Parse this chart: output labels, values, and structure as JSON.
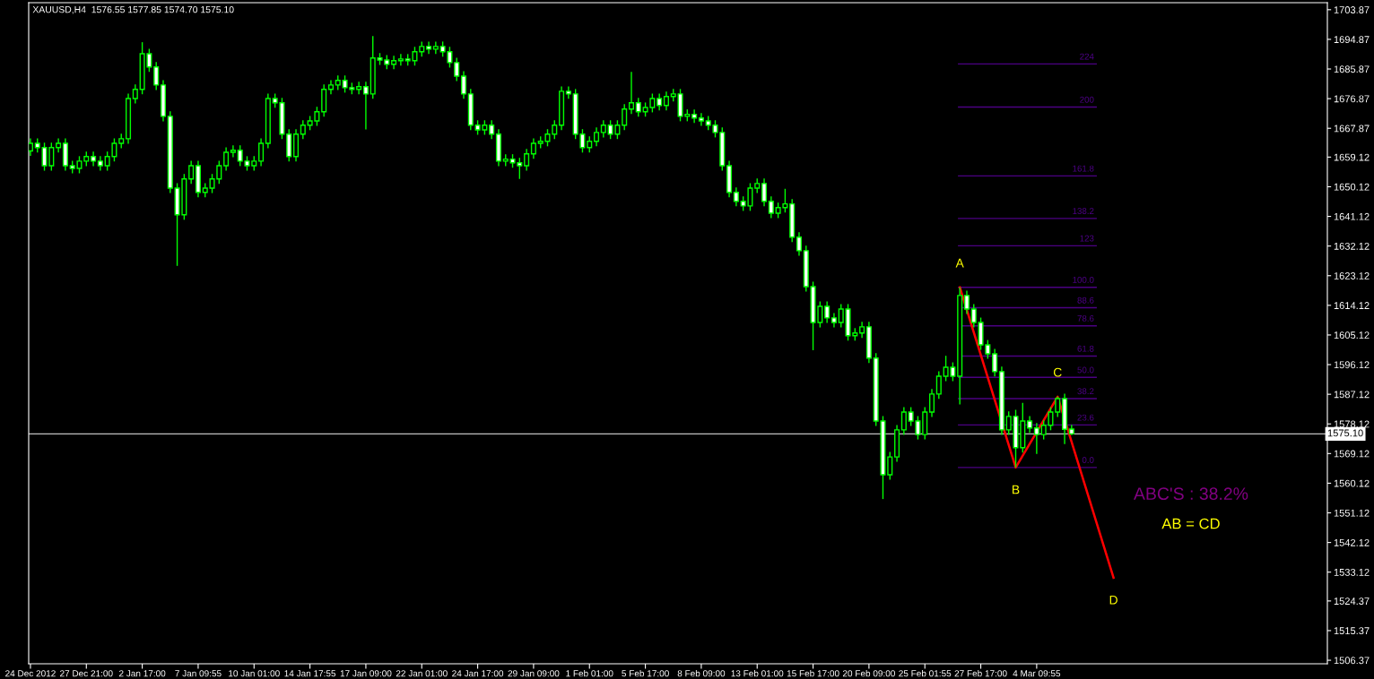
{
  "chart_data": {
    "type": "candlestick",
    "title": "XAUUSD,H4  1576.55 1577.85 1574.70 1575.10",
    "color": "#00ff00",
    "categories": [
      "24 Dec 2012",
      null,
      null,
      null,
      null,
      null,
      null,
      null,
      "27 Dec 21:00",
      null,
      null,
      null,
      null,
      null,
      null,
      null,
      "2 Jan 17:00",
      null,
      null,
      null,
      null,
      null,
      null,
      null,
      "7 Jan 09:55",
      null,
      null,
      null,
      null,
      null,
      null,
      null,
      "10 Jan 01:00",
      null,
      null,
      null,
      null,
      null,
      null,
      null,
      "14 Jan 17:55",
      null,
      null,
      null,
      null,
      null,
      null,
      null,
      "17 Jan 09:00",
      null,
      null,
      null,
      null,
      null,
      null,
      null,
      "22 Jan 01:00",
      null,
      null,
      null,
      null,
      null,
      null,
      null,
      "24 Jan 17:00",
      null,
      null,
      null,
      null,
      null,
      null,
      null,
      "29 Jan 09:00",
      null,
      null,
      null,
      null,
      null,
      null,
      null,
      "1 Feb 01:00",
      null,
      null,
      null,
      null,
      null,
      null,
      null,
      "5 Feb 17:00",
      null,
      null,
      null,
      null,
      null,
      null,
      null,
      "8 Feb 09:00",
      null,
      null,
      null,
      null,
      null,
      null,
      null,
      "13 Feb 01:00",
      null,
      null,
      null,
      null,
      null,
      null,
      null,
      "15 Feb 17:00",
      null,
      null,
      null,
      null,
      null,
      null,
      null,
      "20 Feb 09:00",
      null,
      null,
      null,
      null,
      null,
      null,
      null,
      "25 Feb 01:55",
      null,
      null,
      null,
      null,
      null,
      null,
      null,
      "27 Feb 17:00",
      null,
      null,
      null,
      null,
      null,
      null,
      null,
      "4 Mar 09:55",
      null,
      null,
      null,
      null,
      null,
      null,
      null,
      null,
      null,
      null,
      null,
      null,
      null,
      null,
      null,
      null,
      null,
      null,
      null,
      null,
      null,
      null,
      null,
      null,
      null,
      null,
      null,
      null,
      null,
      null,
      null,
      null,
      null,
      null,
      null,
      null,
      null,
      null,
      null,
      null,
      null
    ],
    "ohlc": [
      [
        1661.0,
        1664.8,
        1659.5,
        1663.3
      ],
      [
        1663.3,
        1664.8,
        1660.5,
        1662.0
      ],
      [
        1662.0,
        1663.5,
        1655.0,
        1656.5
      ],
      [
        1656.5,
        1663.5,
        1655.0,
        1662.0
      ],
      [
        1662.0,
        1664.8,
        1660.5,
        1663.3
      ],
      [
        1663.3,
        1664.8,
        1655.0,
        1656.5
      ],
      [
        1656.5,
        1658.0,
        1654.2,
        1655.7
      ],
      [
        1655.7,
        1659.4,
        1654.2,
        1657.9
      ],
      [
        1657.9,
        1660.8,
        1656.4,
        1659.3
      ],
      [
        1659.3,
        1660.8,
        1656.4,
        1657.9
      ],
      [
        1657.9,
        1659.4,
        1655.0,
        1656.5
      ],
      [
        1656.5,
        1660.8,
        1655.0,
        1659.3
      ],
      [
        1659.3,
        1664.8,
        1657.8,
        1663.3
      ],
      [
        1663.3,
        1666.2,
        1661.8,
        1664.7
      ],
      [
        1664.7,
        1678.4,
        1663.2,
        1676.9
      ],
      [
        1676.9,
        1681.2,
        1675.4,
        1679.7
      ],
      [
        1679.7,
        1694.0,
        1678.2,
        1690.5
      ],
      [
        1690.5,
        1692.0,
        1685.0,
        1686.5
      ],
      [
        1686.5,
        1688.0,
        1679.5,
        1681.0
      ],
      [
        1681.0,
        1682.5,
        1670.0,
        1671.5
      ],
      [
        1671.5,
        1673.0,
        1648.2,
        1649.7
      ],
      [
        1649.7,
        1651.2,
        1626.1,
        1641.6
      ],
      [
        1641.6,
        1654.0,
        1640.1,
        1652.5
      ],
      [
        1652.5,
        1658.0,
        1651.0,
        1656.5
      ],
      [
        1656.5,
        1658.0,
        1646.9,
        1648.4
      ],
      [
        1648.4,
        1651.2,
        1646.9,
        1649.7
      ],
      [
        1649.7,
        1654.0,
        1648.2,
        1652.5
      ],
      [
        1652.5,
        1658.0,
        1651.0,
        1656.5
      ],
      [
        1656.5,
        1662.1,
        1655.0,
        1660.6
      ],
      [
        1660.6,
        1662.7,
        1659.1,
        1661.2
      ],
      [
        1661.2,
        1662.7,
        1656.4,
        1657.9
      ],
      [
        1657.9,
        1659.4,
        1655.0,
        1656.5
      ],
      [
        1656.5,
        1659.4,
        1655.0,
        1657.9
      ],
      [
        1657.9,
        1664.8,
        1656.4,
        1663.3
      ],
      [
        1663.3,
        1678.4,
        1661.8,
        1676.9
      ],
      [
        1676.9,
        1678.4,
        1674.1,
        1675.6
      ],
      [
        1675.6,
        1677.1,
        1664.6,
        1666.1
      ],
      [
        1666.1,
        1667.6,
        1657.8,
        1659.3
      ],
      [
        1659.3,
        1667.6,
        1657.8,
        1666.1
      ],
      [
        1666.1,
        1670.3,
        1664.6,
        1668.8
      ],
      [
        1668.8,
        1671.6,
        1667.3,
        1670.1
      ],
      [
        1670.1,
        1674.4,
        1668.6,
        1672.9
      ],
      [
        1672.9,
        1681.2,
        1671.4,
        1679.7
      ],
      [
        1679.7,
        1682.5,
        1678.2,
        1681.0
      ],
      [
        1681.0,
        1683.9,
        1679.5,
        1682.4
      ],
      [
        1682.4,
        1683.9,
        1678.7,
        1680.2
      ],
      [
        1680.2,
        1681.7,
        1678.2,
        1679.7
      ],
      [
        1679.7,
        1682.0,
        1678.2,
        1680.5
      ],
      [
        1680.5,
        1682.0,
        1667.5,
        1678.3
      ],
      [
        1678.3,
        1695.9,
        1676.8,
        1689.2
      ],
      [
        1689.2,
        1690.7,
        1687.1,
        1688.6
      ],
      [
        1688.6,
        1690.1,
        1685.8,
        1687.3
      ],
      [
        1687.3,
        1689.9,
        1685.8,
        1688.4
      ],
      [
        1688.4,
        1690.4,
        1686.9,
        1688.9
      ],
      [
        1688.9,
        1690.4,
        1686.9,
        1688.4
      ],
      [
        1688.4,
        1692.6,
        1686.9,
        1691.1
      ],
      [
        1691.1,
        1694.2,
        1689.6,
        1692.7
      ],
      [
        1692.7,
        1694.2,
        1690.4,
        1691.9
      ],
      [
        1691.9,
        1694.2,
        1690.4,
        1692.7
      ],
      [
        1692.7,
        1694.2,
        1689.6,
        1691.1
      ],
      [
        1691.1,
        1692.6,
        1686.3,
        1687.8
      ],
      [
        1687.8,
        1689.3,
        1682.2,
        1683.7
      ],
      [
        1683.7,
        1685.2,
        1676.8,
        1678.3
      ],
      [
        1678.3,
        1679.8,
        1667.3,
        1668.8
      ],
      [
        1668.8,
        1670.3,
        1665.9,
        1667.4
      ],
      [
        1667.4,
        1670.3,
        1665.9,
        1668.8
      ],
      [
        1668.8,
        1670.3,
        1664.6,
        1666.1
      ],
      [
        1666.1,
        1667.6,
        1656.4,
        1657.9
      ],
      [
        1657.9,
        1660.0,
        1656.4,
        1658.5
      ],
      [
        1658.5,
        1660.0,
        1655.9,
        1657.4
      ],
      [
        1657.4,
        1658.9,
        1652.5,
        1656.5
      ],
      [
        1656.5,
        1661.6,
        1655.0,
        1660.1
      ],
      [
        1660.1,
        1664.8,
        1658.6,
        1663.3
      ],
      [
        1663.3,
        1665.4,
        1661.8,
        1663.9
      ],
      [
        1663.9,
        1667.6,
        1662.4,
        1666.1
      ],
      [
        1666.1,
        1670.3,
        1664.6,
        1668.8
      ],
      [
        1668.8,
        1680.6,
        1667.3,
        1679.1
      ],
      [
        1679.1,
        1680.6,
        1676.8,
        1678.3
      ],
      [
        1678.3,
        1679.8,
        1664.6,
        1666.1
      ],
      [
        1666.1,
        1667.6,
        1660.5,
        1662.0
      ],
      [
        1662.0,
        1665.4,
        1660.5,
        1663.9
      ],
      [
        1663.9,
        1668.1,
        1662.4,
        1666.6
      ],
      [
        1666.6,
        1670.3,
        1665.1,
        1668.8
      ],
      [
        1668.8,
        1670.3,
        1664.6,
        1666.1
      ],
      [
        1666.1,
        1670.3,
        1664.6,
        1668.8
      ],
      [
        1668.8,
        1675.2,
        1667.3,
        1673.7
      ],
      [
        1673.7,
        1685.0,
        1672.2,
        1675.6
      ],
      [
        1675.6,
        1677.1,
        1671.4,
        1672.9
      ],
      [
        1672.9,
        1675.7,
        1671.4,
        1674.2
      ],
      [
        1674.2,
        1678.4,
        1672.7,
        1676.9
      ],
      [
        1676.9,
        1678.4,
        1673.3,
        1674.8
      ],
      [
        1674.8,
        1679.0,
        1673.3,
        1677.5
      ],
      [
        1677.5,
        1679.8,
        1676.0,
        1678.3
      ],
      [
        1678.3,
        1679.8,
        1670.0,
        1671.5
      ],
      [
        1671.5,
        1673.6,
        1670.0,
        1672.1
      ],
      [
        1672.1,
        1673.6,
        1669.5,
        1671.0
      ],
      [
        1671.0,
        1672.5,
        1668.6,
        1670.1
      ],
      [
        1670.1,
        1671.6,
        1667.3,
        1668.8
      ],
      [
        1668.8,
        1670.3,
        1665.1,
        1666.6
      ],
      [
        1666.6,
        1668.1,
        1655.0,
        1656.5
      ],
      [
        1656.5,
        1658.0,
        1646.9,
        1648.4
      ],
      [
        1648.4,
        1649.9,
        1644.2,
        1645.7
      ],
      [
        1645.7,
        1647.2,
        1642.8,
        1644.3
      ],
      [
        1644.3,
        1651.2,
        1642.8,
        1649.7
      ],
      [
        1649.7,
        1652.6,
        1648.2,
        1651.1
      ],
      [
        1651.1,
        1652.6,
        1644.2,
        1645.7
      ],
      [
        1645.7,
        1647.2,
        1640.6,
        1642.1
      ],
      [
        1642.1,
        1645.3,
        1640.6,
        1643.8
      ],
      [
        1643.8,
        1649.5,
        1642.3,
        1644.9
      ],
      [
        1644.9,
        1646.4,
        1633.3,
        1634.8
      ],
      [
        1634.8,
        1636.3,
        1629.2,
        1630.7
      ],
      [
        1630.7,
        1632.2,
        1618.3,
        1619.8
      ],
      [
        1619.8,
        1621.3,
        1600.5,
        1608.9
      ],
      [
        1608.9,
        1615.3,
        1607.4,
        1613.8
      ],
      [
        1613.8,
        1615.3,
        1608.8,
        1610.3
      ],
      [
        1610.3,
        1611.8,
        1607.4,
        1608.9
      ],
      [
        1608.9,
        1614.5,
        1607.4,
        1613.0
      ],
      [
        1613.0,
        1614.5,
        1603.4,
        1604.9
      ],
      [
        1604.9,
        1607.2,
        1603.4,
        1605.7
      ],
      [
        1605.7,
        1609.1,
        1604.2,
        1607.6
      ],
      [
        1607.6,
        1609.1,
        1596.6,
        1598.1
      ],
      [
        1598.1,
        1599.6,
        1577.5,
        1579.0
      ],
      [
        1579.0,
        1580.5,
        1555.3,
        1562.7
      ],
      [
        1562.7,
        1569.6,
        1561.2,
        1568.1
      ],
      [
        1568.1,
        1577.8,
        1566.6,
        1576.3
      ],
      [
        1576.3,
        1583.2,
        1574.8,
        1581.7
      ],
      [
        1581.7,
        1583.2,
        1577.5,
        1579.0
      ],
      [
        1579.0,
        1580.5,
        1573.4,
        1574.9
      ],
      [
        1574.9,
        1583.2,
        1573.4,
        1581.7
      ],
      [
        1581.7,
        1588.7,
        1580.2,
        1587.2
      ],
      [
        1587.2,
        1594.1,
        1585.7,
        1592.6
      ],
      [
        1592.6,
        1598.8,
        1591.1,
        1595.3
      ],
      [
        1595.3,
        1596.8,
        1591.1,
        1592.6
      ],
      [
        1592.6,
        1619.6,
        1584.0,
        1617.1
      ],
      [
        1617.1,
        1618.6,
        1611.5,
        1613.0
      ],
      [
        1613.0,
        1614.5,
        1607.4,
        1608.9
      ],
      [
        1608.9,
        1610.4,
        1600.6,
        1602.1
      ],
      [
        1602.1,
        1603.6,
        1597.9,
        1599.4
      ],
      [
        1599.4,
        1600.9,
        1592.5,
        1594.0
      ],
      [
        1594.0,
        1595.5,
        1574.8,
        1576.3
      ],
      [
        1576.3,
        1581.9,
        1574.8,
        1580.4
      ],
      [
        1580.4,
        1582.4,
        1564.9,
        1570.9
      ],
      [
        1570.9,
        1584.5,
        1569.4,
        1579.0
      ],
      [
        1579.0,
        1580.5,
        1575.4,
        1576.9
      ],
      [
        1576.9,
        1578.4,
        1569.0,
        1574.9
      ],
      [
        1574.9,
        1579.2,
        1573.4,
        1577.7
      ],
      [
        1577.7,
        1583.2,
        1576.2,
        1581.7
      ],
      [
        1581.7,
        1586.4,
        1580.2,
        1585.8
      ],
      [
        1585.8,
        1587.3,
        1572.0,
        1576.5
      ],
      [
        1576.55,
        1577.85,
        1574.7,
        1575.1
      ],
      null,
      null,
      null,
      null,
      null,
      null,
      null,
      null,
      null,
      null,
      null,
      null,
      null,
      null,
      null,
      null,
      null,
      null,
      null,
      null,
      null,
      null,
      null,
      null,
      null,
      null,
      null,
      null,
      null,
      null,
      null,
      null,
      null,
      null,
      null,
      null
    ],
    "series": [
      {
        "type": "line",
        "color": "#ff0000",
        "values": [
          null,
          null,
          null,
          null,
          null,
          null,
          null,
          null,
          null,
          null,
          null,
          null,
          null,
          null,
          null,
          null,
          null,
          null,
          null,
          null,
          null,
          null,
          null,
          null,
          null,
          null,
          null,
          null,
          null,
          null,
          null,
          null,
          null,
          null,
          null,
          null,
          null,
          null,
          null,
          null,
          null,
          null,
          null,
          null,
          null,
          null,
          null,
          null,
          null,
          null,
          null,
          null,
          null,
          null,
          null,
          null,
          null,
          null,
          null,
          null,
          null,
          null,
          null,
          null,
          null,
          null,
          null,
          null,
          null,
          null,
          null,
          null,
          null,
          null,
          null,
          null,
          null,
          null,
          null,
          null,
          null,
          null,
          null,
          null,
          null,
          null,
          null,
          null,
          null,
          null,
          null,
          null,
          null,
          null,
          null,
          null,
          null,
          null,
          null,
          null,
          null,
          null,
          null,
          null,
          null,
          null,
          null,
          null,
          null,
          null,
          null,
          null,
          null,
          null,
          null,
          null,
          null,
          null,
          null,
          null,
          null,
          null,
          null,
          null,
          null,
          null,
          null,
          null,
          null,
          null,
          null,
          null,
          null,
          1619.6,
          null,
          null,
          null,
          null,
          null,
          null,
          null,
          1564.9,
          null,
          null,
          null,
          null,
          null,
          1586.4,
          null,
          null,
          null,
          null,
          null,
          null,
          null,
          1531.4,
          null,
          null,
          null,
          null,
          null,
          null,
          null,
          null,
          null,
          null,
          null,
          null,
          null,
          null,
          null,
          null,
          null,
          null,
          null,
          null,
          null,
          null,
          null,
          null,
          null,
          null,
          null,
          null,
          null,
          null
        ],
        "value_labels": [
          null,
          null,
          null,
          null,
          null,
          null,
          null,
          null,
          null,
          null,
          null,
          null,
          null,
          null,
          null,
          null,
          null,
          null,
          null,
          null,
          null,
          null,
          null,
          null,
          null,
          null,
          null,
          null,
          null,
          null,
          null,
          null,
          null,
          null,
          null,
          null,
          null,
          null,
          null,
          null,
          null,
          null,
          null,
          null,
          null,
          null,
          null,
          null,
          null,
          null,
          null,
          null,
          null,
          null,
          null,
          null,
          null,
          null,
          null,
          null,
          null,
          null,
          null,
          null,
          null,
          null,
          null,
          null,
          null,
          null,
          null,
          null,
          null,
          null,
          null,
          null,
          null,
          null,
          null,
          null,
          null,
          null,
          null,
          null,
          null,
          null,
          null,
          null,
          null,
          null,
          null,
          null,
          null,
          null,
          null,
          null,
          null,
          null,
          null,
          null,
          null,
          null,
          null,
          null,
          null,
          null,
          null,
          null,
          null,
          null,
          null,
          null,
          null,
          null,
          null,
          null,
          null,
          null,
          null,
          null,
          null,
          null,
          null,
          null,
          null,
          null,
          null,
          null,
          null,
          null,
          null,
          null,
          null,
          "A",
          null,
          null,
          null,
          null,
          null,
          null,
          null,
          "B",
          null,
          null,
          null,
          null,
          null,
          "C",
          null,
          null,
          null,
          null,
          null,
          null,
          null,
          "D",
          null,
          null,
          null,
          null,
          null,
          null,
          null,
          null,
          null,
          null,
          null,
          null,
          null,
          null,
          null,
          null,
          null,
          null,
          null,
          null,
          null,
          null,
          null,
          null,
          null,
          null,
          null,
          null,
          null,
          null
        ]
      }
    ],
    "ylim": [
      1505.3,
      1706.0
    ],
    "yticks": [
      1703.87,
      1694.87,
      1685.87,
      1676.87,
      1667.87,
      1659.12,
      1650.12,
      1641.12,
      1632.12,
      1623.12,
      1614.12,
      1605.12,
      1596.12,
      1587.12,
      1578.12,
      1569.12,
      1560.12,
      1551.12,
      1542.12,
      1533.12,
      1524.37,
      1515.37,
      1506.37
    ],
    "ref_lines": [
      {
        "axis": "y",
        "value": 1575.1,
        "label": "1575.10",
        "color": "#c0c0c0"
      },
      {
        "axis": "y",
        "value": 1564.9,
        "color": "#4b0082"
      },
      {
        "axis": "y",
        "value": 1577.8,
        "color": "#4b0082"
      },
      {
        "axis": "y",
        "value": 1585.8,
        "color": "#4b0082"
      },
      {
        "axis": "y",
        "value": 1592.25,
        "color": "#4b0082"
      },
      {
        "axis": "y",
        "value": 1598.7,
        "color": "#4b0082"
      },
      {
        "axis": "y",
        "value": 1607.9,
        "color": "#4b0082"
      },
      {
        "axis": "y",
        "value": 1613.4,
        "color": "#4b0082"
      },
      {
        "axis": "y",
        "value": 1619.6,
        "color": "#4b0082"
      },
      {
        "axis": "y",
        "value": 1632.2,
        "color": "#4b0082"
      },
      {
        "axis": "y",
        "value": 1640.5,
        "color": "#4b0082"
      },
      {
        "axis": "y",
        "value": 1653.4,
        "color": "#4b0082"
      },
      {
        "axis": "y",
        "value": 1674.3,
        "color": "#4b0082"
      },
      {
        "axis": "y",
        "value": 1687.4,
        "color": "#4b0082"
      }
    ],
    "annotations": [
      "ABC'S : 38.2%",
      "AB = CD",
      {
        "text": "0.0",
        "y": 1564.9
      },
      {
        "text": "23.6",
        "y": 1577.8
      },
      {
        "text": "38.2",
        "y": 1585.8
      },
      {
        "text": "50.0",
        "y": 1592.25
      },
      {
        "text": "61.8",
        "y": 1598.7
      },
      {
        "text": "78.6",
        "y": 1607.9
      },
      {
        "text": "88.6",
        "y": 1613.4
      },
      {
        "text": "100.0",
        "y": 1619.6
      },
      {
        "text": "123",
        "y": 1632.2
      },
      {
        "text": "138.2",
        "y": 1640.5
      },
      {
        "text": "161.8",
        "y": 1653.4
      },
      {
        "text": "200",
        "y": 1674.3
      },
      {
        "text": "224",
        "y": 1687.4
      }
    ],
    "grid": false,
    "legend": false
  }
}
